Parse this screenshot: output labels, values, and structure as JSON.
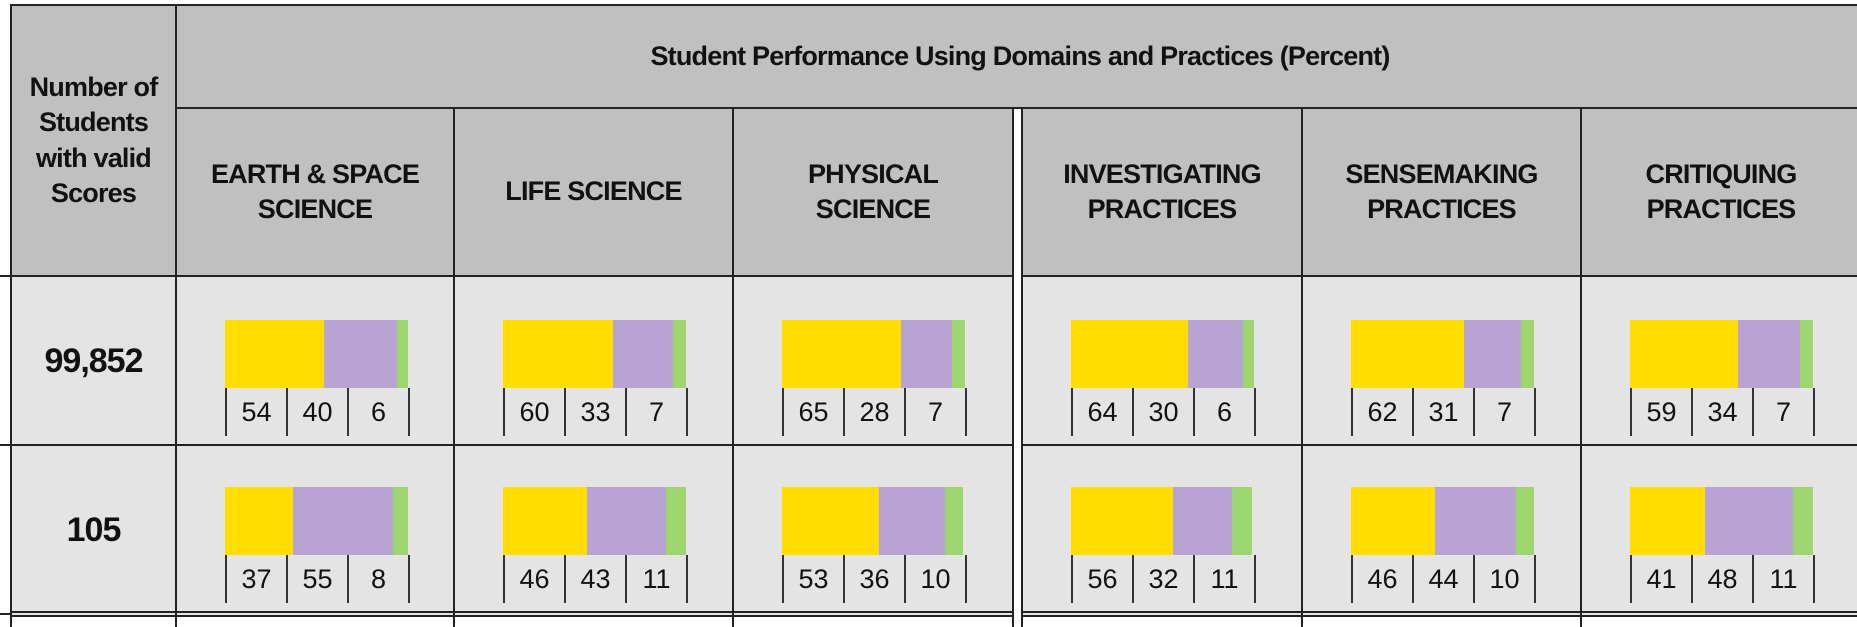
{
  "header": {
    "title": "Student Performance Using Domains and Practices (Percent)",
    "row_label": "Number of Students with valid Scores",
    "columns": [
      "EARTH & SPACE SCIENCE",
      "LIFE SCIENCE",
      "PHYSICAL SCIENCE",
      "INVESTIGATING PRACTICES",
      "SENSEMAKING PRACTICES",
      "CRITIQUING PRACTICES"
    ]
  },
  "segment_colors": [
    "#ffdd00",
    "#b9a3d3",
    "#9dd56e"
  ],
  "rows": [
    {
      "count": "99,852",
      "cells": [
        [
          54,
          40,
          6
        ],
        [
          60,
          33,
          7
        ],
        [
          65,
          28,
          7
        ],
        [
          64,
          30,
          6
        ],
        [
          62,
          31,
          7
        ],
        [
          59,
          34,
          7
        ]
      ]
    },
    {
      "count": "105",
      "cells": [
        [
          37,
          55,
          8
        ],
        [
          46,
          43,
          11
        ],
        [
          53,
          36,
          10
        ],
        [
          56,
          32,
          11
        ],
        [
          46,
          44,
          10
        ],
        [
          41,
          48,
          11
        ]
      ]
    }
  ]
}
